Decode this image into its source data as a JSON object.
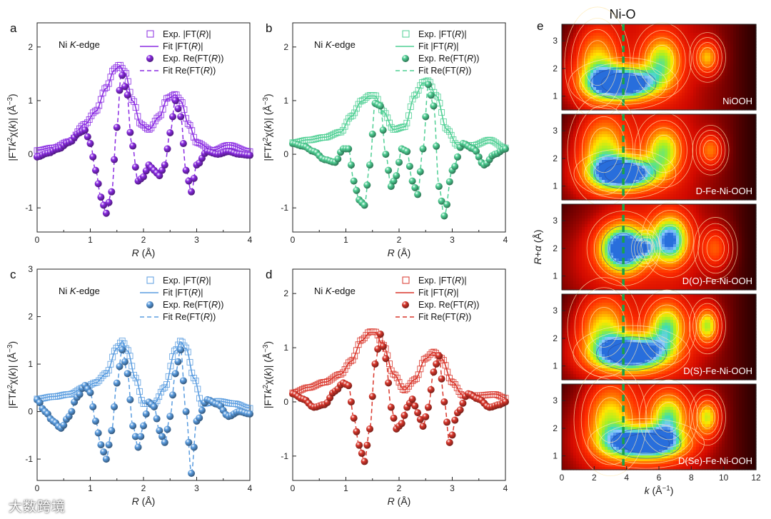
{
  "watermark": "大数跨境",
  "nio_label": "Ni-O",
  "chart_data": [
    {
      "id": "a",
      "type": "line",
      "panel_label": "a",
      "edge_label": "Ni K-edge",
      "color": "#8a2be2",
      "xlabel": "R (Å)",
      "ylabel": "|FTk²χ(k)| (Å⁻³)",
      "xlim": [
        0,
        4
      ],
      "ylim": [
        -1.45,
        2.45
      ],
      "xticks": [
        0,
        1,
        2,
        3,
        4
      ],
      "yticks": [
        -1,
        0,
        1,
        2
      ],
      "legend": [
        "Exp. |FT(R)|",
        "Fit |FT(R)|",
        "Exp. Re(FT(R))",
        "Fit Re(FT(R))"
      ],
      "series": {
        "mag": {
          "x": [
            0,
            0.3,
            0.6,
            0.9,
            1.1,
            1.3,
            1.45,
            1.55,
            1.65,
            1.8,
            1.95,
            2.1,
            2.3,
            2.45,
            2.6,
            2.7,
            2.85,
            3.0,
            3.3,
            3.6,
            4.0
          ],
          "y": [
            0.05,
            0.1,
            0.22,
            0.55,
            0.8,
            1.25,
            1.6,
            1.68,
            1.55,
            1.0,
            0.55,
            0.45,
            0.7,
            1.05,
            1.12,
            1.0,
            0.55,
            0.2,
            0.05,
            0.15,
            0.03
          ]
        },
        "re": {
          "x": [
            0,
            0.2,
            0.4,
            0.6,
            0.8,
            0.9,
            1.0,
            1.1,
            1.2,
            1.3,
            1.4,
            1.5,
            1.58,
            1.68,
            1.78,
            1.9,
            2.0,
            2.1,
            2.2,
            2.3,
            2.4,
            2.5,
            2.6,
            2.7,
            2.8,
            2.9,
            3.0,
            3.2,
            3.4,
            3.6,
            3.8,
            4.0
          ],
          "y": [
            -0.05,
            0.02,
            0.1,
            0.22,
            0.4,
            0.45,
            0.2,
            -0.3,
            -0.8,
            -1.1,
            -0.7,
            0.5,
            1.5,
            1.2,
            0.2,
            -0.5,
            -0.42,
            -0.2,
            -0.3,
            -0.4,
            -0.2,
            0.4,
            1.0,
            0.7,
            -0.3,
            -0.7,
            -0.2,
            0.05,
            0.0,
            0.05,
            0.0,
            -0.02
          ]
        }
      }
    },
    {
      "id": "b",
      "type": "line",
      "panel_label": "b",
      "edge_label": "Ni K-edge",
      "color": "#4fcf94",
      "xlabel": "R (Å)",
      "ylabel": "|FTk²χ(k)| (Å⁻³)",
      "xlim": [
        0,
        4
      ],
      "ylim": [
        -1.45,
        2.45
      ],
      "xticks": [
        0,
        1,
        2,
        3,
        4
      ],
      "yticks": [
        -1,
        0,
        1,
        2
      ],
      "legend": [
        "Exp. |FT(R)|",
        "Fit |FT(R)|",
        "Exp. Re(FT(R))",
        "Fit Re(FT(R))"
      ],
      "series": {
        "mag": {
          "x": [
            0,
            0.3,
            0.6,
            0.9,
            1.1,
            1.3,
            1.45,
            1.55,
            1.7,
            1.9,
            2.1,
            2.3,
            2.45,
            2.55,
            2.7,
            2.9,
            3.1,
            3.4,
            3.7,
            4.0
          ],
          "y": [
            0.2,
            0.25,
            0.3,
            0.4,
            0.7,
            1.0,
            1.1,
            1.1,
            0.8,
            0.45,
            0.5,
            1.1,
            1.35,
            1.38,
            1.1,
            0.45,
            0.15,
            0.15,
            0.25,
            0.1
          ]
        },
        "re": {
          "x": [
            0,
            0.2,
            0.4,
            0.6,
            0.8,
            0.95,
            1.05,
            1.15,
            1.25,
            1.35,
            1.45,
            1.55,
            1.65,
            1.75,
            1.85,
            1.95,
            2.05,
            2.15,
            2.25,
            2.35,
            2.45,
            2.55,
            2.65,
            2.75,
            2.85,
            3.0,
            3.2,
            3.4,
            3.6,
            3.8,
            4.0
          ],
          "y": [
            0.2,
            0.15,
            0.05,
            -0.1,
            -0.15,
            0.1,
            0.1,
            -0.5,
            -0.85,
            -0.95,
            -0.2,
            0.95,
            0.9,
            0.0,
            -0.6,
            -0.4,
            0.1,
            0.05,
            -0.5,
            -0.75,
            0.1,
            1.3,
            0.9,
            -0.6,
            -1.15,
            -0.3,
            0.2,
            0.1,
            -0.2,
            0.0,
            0.1
          ]
        }
      }
    },
    {
      "id": "c",
      "type": "line",
      "panel_label": "c",
      "edge_label": "Ni K-edge",
      "color": "#5b9de0",
      "xlabel": "R (Å)",
      "ylabel": "|FTk²χ(k)| (Å⁻³)",
      "xlim": [
        0,
        4
      ],
      "ylim": [
        -1.45,
        3.0
      ],
      "xticks": [
        0,
        1,
        2,
        3,
        4
      ],
      "yticks": [
        -1,
        0,
        1,
        2,
        3
      ],
      "legend": [
        "Exp. |FT(R)|",
        "Fit |FT(R)|",
        "Exp. Re(FT(R))",
        "Fit Re(FT(R))"
      ],
      "series": {
        "mag": {
          "x": [
            0,
            0.3,
            0.6,
            0.9,
            1.1,
            1.3,
            1.5,
            1.6,
            1.7,
            1.85,
            2.0,
            2.2,
            2.4,
            2.6,
            2.7,
            2.8,
            2.95,
            3.1,
            3.4,
            3.7,
            4.0
          ],
          "y": [
            0.25,
            0.3,
            0.35,
            0.5,
            0.6,
            0.8,
            1.35,
            1.5,
            1.3,
            0.7,
            0.15,
            0.15,
            0.5,
            1.3,
            1.5,
            1.35,
            0.7,
            0.15,
            0.2,
            0.15,
            0.05
          ]
        },
        "re": {
          "x": [
            0,
            0.15,
            0.3,
            0.45,
            0.6,
            0.75,
            0.9,
            1.0,
            1.1,
            1.2,
            1.3,
            1.4,
            1.5,
            1.6,
            1.7,
            1.8,
            1.9,
            2.0,
            2.1,
            2.2,
            2.3,
            2.4,
            2.5,
            2.6,
            2.7,
            2.8,
            2.9,
            3.0,
            3.2,
            3.4,
            3.6,
            3.8,
            4.0
          ],
          "y": [
            0.25,
            0.0,
            -0.2,
            -0.35,
            -0.1,
            0.3,
            0.55,
            0.4,
            -0.2,
            -0.7,
            -1.0,
            -0.4,
            0.6,
            1.3,
            0.8,
            -0.3,
            -0.75,
            -0.3,
            0.2,
            0.1,
            -0.4,
            -0.65,
            -0.1,
            0.8,
            1.3,
            0.0,
            -1.3,
            -0.2,
            0.25,
            0.15,
            -0.1,
            0.0,
            -0.05
          ]
        }
      }
    },
    {
      "id": "d",
      "type": "line",
      "panel_label": "d",
      "edge_label": "Ni K-edge",
      "color": "#d9362b",
      "xlabel": "R (Å)",
      "ylabel": "|FTk²χ(k)| (Å⁻³)",
      "xlim": [
        0,
        4
      ],
      "ylim": [
        -1.45,
        2.45
      ],
      "xticks": [
        0,
        1,
        2,
        3,
        4
      ],
      "yticks": [
        -1,
        0,
        1,
        2
      ],
      "legend": [
        "Exp. |FT(R)|",
        "Fit |FT(R)|",
        "Exp. Re(FT(R))",
        "Fit Re(FT(R))"
      ],
      "series": {
        "mag": {
          "x": [
            0,
            0.3,
            0.6,
            0.9,
            1.1,
            1.3,
            1.45,
            1.55,
            1.7,
            1.9,
            2.1,
            2.3,
            2.5,
            2.65,
            2.8,
            3.0,
            3.2,
            3.5,
            3.8,
            4.0
          ],
          "y": [
            0.15,
            0.25,
            0.35,
            0.5,
            0.75,
            1.15,
            1.3,
            1.3,
            1.05,
            0.5,
            0.2,
            0.4,
            0.8,
            0.92,
            0.8,
            0.35,
            0.1,
            0.1,
            0.12,
            0.05
          ]
        },
        "re": {
          "x": [
            0,
            0.2,
            0.4,
            0.6,
            0.8,
            0.95,
            1.05,
            1.15,
            1.25,
            1.35,
            1.45,
            1.55,
            1.65,
            1.75,
            1.85,
            1.95,
            2.05,
            2.15,
            2.25,
            2.35,
            2.45,
            2.55,
            2.65,
            2.75,
            2.85,
            2.95,
            3.1,
            3.3,
            3.5,
            3.7,
            3.9,
            4.0
          ],
          "y": [
            0.15,
            0.05,
            -0.1,
            -0.05,
            0.2,
            0.35,
            0.3,
            -0.3,
            -0.8,
            -1.1,
            -0.5,
            0.7,
            1.25,
            0.8,
            -0.1,
            -0.5,
            -0.4,
            -0.1,
            0.05,
            -0.2,
            -0.45,
            -0.1,
            0.55,
            0.85,
            0.0,
            -0.75,
            -0.2,
            0.15,
            0.05,
            -0.1,
            -0.05,
            0.0
          ]
        }
      }
    },
    {
      "id": "e",
      "type": "heatmap",
      "panel_label": "e",
      "xlabel": "k (Å⁻¹)",
      "ylabel": "R+α (Å)",
      "xlim": [
        0,
        12
      ],
      "ylim": [
        0.5,
        3.6
      ],
      "xticks": [
        0,
        2,
        4,
        6,
        8,
        10,
        12
      ],
      "yticks": [
        1,
        2,
        3
      ],
      "reference_k": 3.8,
      "samples": [
        {
          "label": "NiOOH",
          "blobs": [
            {
              "k": 3.8,
              "r": 1.45,
              "sk": 1.5,
              "sr": 0.42,
              "a": 1.05
            },
            {
              "k": 2.2,
              "r": 2.2,
              "sk": 0.9,
              "sr": 0.9,
              "a": 0.45
            },
            {
              "k": 6.2,
              "r": 2.3,
              "sk": 0.8,
              "sr": 0.6,
              "a": 0.55
            },
            {
              "k": 9.0,
              "r": 2.4,
              "sk": 0.5,
              "sr": 0.4,
              "a": 0.45
            }
          ]
        },
        {
          "label": "D-Fe-Ni-OOH",
          "blobs": [
            {
              "k": 3.9,
              "r": 1.45,
              "sk": 1.4,
              "sr": 0.4,
              "a": 1.0
            },
            {
              "k": 2.6,
              "r": 2.3,
              "sk": 1.0,
              "sr": 0.9,
              "a": 0.5
            },
            {
              "k": 6.3,
              "r": 2.3,
              "sk": 0.8,
              "sr": 0.6,
              "a": 0.55
            },
            {
              "k": 9.2,
              "r": 2.3,
              "sk": 0.5,
              "sr": 0.4,
              "a": 0.35
            }
          ]
        },
        {
          "label": "D(O)-Fe-Ni-OOH",
          "blobs": [
            {
              "k": 3.8,
              "r": 2.0,
              "sk": 1.0,
              "sr": 0.6,
              "a": 1.05
            },
            {
              "k": 6.7,
              "r": 2.3,
              "sk": 0.8,
              "sr": 0.6,
              "a": 0.85
            },
            {
              "k": 5.2,
              "r": 2.0,
              "sk": 0.4,
              "sr": 0.3,
              "a": 0.3
            },
            {
              "k": 9.5,
              "r": 2.0,
              "sk": 0.6,
              "sr": 0.5,
              "a": 0.3
            }
          ]
        },
        {
          "label": "D(S)-Fe-Ni-OOH",
          "blobs": [
            {
              "k": 4.3,
              "r": 1.45,
              "sk": 1.6,
              "sr": 0.45,
              "a": 1.05
            },
            {
              "k": 2.6,
              "r": 2.4,
              "sk": 1.0,
              "sr": 0.8,
              "a": 0.45
            },
            {
              "k": 6.5,
              "r": 2.4,
              "sk": 0.8,
              "sr": 0.6,
              "a": 0.6
            },
            {
              "k": 9.0,
              "r": 2.45,
              "sk": 0.5,
              "sr": 0.45,
              "a": 0.6
            }
          ]
        },
        {
          "label": "D(Se)-Fe-Ni-OOH",
          "blobs": [
            {
              "k": 5.2,
              "r": 1.45,
              "sk": 1.6,
              "sr": 0.4,
              "a": 1.05
            },
            {
              "k": 3.0,
              "r": 2.3,
              "sk": 1.0,
              "sr": 0.9,
              "a": 0.5
            },
            {
              "k": 6.6,
              "r": 2.4,
              "sk": 0.8,
              "sr": 0.6,
              "a": 0.6
            },
            {
              "k": 9.0,
              "r": 2.4,
              "sk": 0.5,
              "sr": 0.45,
              "a": 0.55
            }
          ]
        }
      ]
    }
  ]
}
